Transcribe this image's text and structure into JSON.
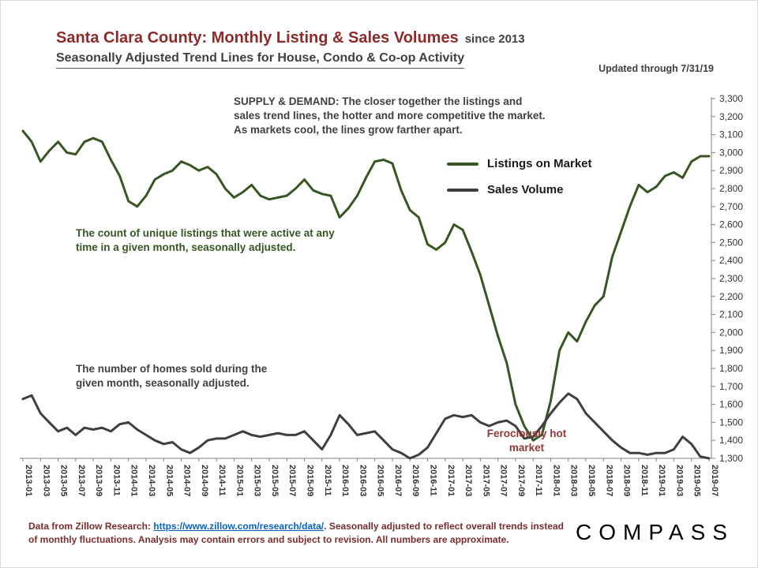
{
  "header": {
    "title": "Santa Clara County: Monthly Listing & Sales Volumes",
    "title_suffix": "since 2013",
    "subtitle": "Seasonally Adjusted Trend Lines for House, Condo & Co-op Activity",
    "updated": "Updated through 7/31/19"
  },
  "legend": {
    "listings_label": "Listings on Market",
    "sales_label": "Sales Volume"
  },
  "annotations": {
    "supply_demand": "SUPPLY & DEMAND: The closer together the listings and sales trend lines, the hotter and more competitive the market. As markets cool, the lines grow farther apart.",
    "listings_note": "The count of unique listings that were active at any time in a given month, seasonally adjusted.",
    "sales_note": "The number of homes sold during the given month, seasonally adjusted.",
    "hot_market": "Ferociously hot market"
  },
  "footer": {
    "text_prefix": "Data from Zillow Research: ",
    "link": "https://www.zillow.com/research/data/",
    "text_suffix": ". Seasonally adjusted to reflect overall trends instead of monthly fluctuations. Analysis may contain errors and subject to revision. All numbers are approximate.",
    "logo": "COMPASS"
  },
  "colors": {
    "listings": "#375623",
    "sales": "#3f3f3f",
    "axis": "#808080",
    "axis_label": "#333333",
    "title": "#8f2a2a",
    "hot_market": "#953735",
    "link": "#0563c1"
  },
  "chart_data": {
    "type": "line",
    "title": "Santa Clara County: Monthly Listing & Sales Volumes since 2013",
    "subtitle": "Seasonally Adjusted Trend Lines for House, Condo & Co-op Activity",
    "xlabel": "",
    "ylabel": "",
    "ylim": [
      1300,
      3300
    ],
    "ytick_step": 100,
    "xtick_every": 2,
    "grid": false,
    "y_axis_side": "right",
    "legend_position": "inside-top-right",
    "x": [
      "2013-01",
      "2013-02",
      "2013-03",
      "2013-04",
      "2013-05",
      "2013-06",
      "2013-07",
      "2013-08",
      "2013-09",
      "2013-10",
      "2013-11",
      "2013-12",
      "2014-01",
      "2014-02",
      "2014-03",
      "2014-04",
      "2014-05",
      "2014-06",
      "2014-07",
      "2014-08",
      "2014-09",
      "2014-10",
      "2014-11",
      "2014-12",
      "2015-01",
      "2015-02",
      "2015-03",
      "2015-04",
      "2015-05",
      "2015-06",
      "2015-07",
      "2015-08",
      "2015-09",
      "2015-10",
      "2015-11",
      "2015-12",
      "2016-01",
      "2016-02",
      "2016-03",
      "2016-04",
      "2016-05",
      "2016-06",
      "2016-07",
      "2016-08",
      "2016-09",
      "2016-10",
      "2016-11",
      "2016-12",
      "2017-01",
      "2017-02",
      "2017-03",
      "2017-04",
      "2017-05",
      "2017-06",
      "2017-07",
      "2017-08",
      "2017-09",
      "2017-10",
      "2017-11",
      "2017-12",
      "2018-01",
      "2018-02",
      "2018-03",
      "2018-04",
      "2018-05",
      "2018-06",
      "2018-07",
      "2018-08",
      "2018-09",
      "2018-10",
      "2018-11",
      "2018-12",
      "2019-01",
      "2019-02",
      "2019-03",
      "2019-04",
      "2019-05",
      "2019-06",
      "2019-07"
    ],
    "series": [
      {
        "name": "Listings on Market",
        "color_key": "listings",
        "values": [
          3120,
          3060,
          2950,
          3010,
          3060,
          3000,
          2990,
          3060,
          3080,
          3060,
          2960,
          2870,
          2730,
          2700,
          2760,
          2850,
          2880,
          2900,
          2950,
          2930,
          2900,
          2920,
          2880,
          2800,
          2750,
          2780,
          2820,
          2760,
          2740,
          2750,
          2760,
          2800,
          2850,
          2790,
          2770,
          2760,
          2640,
          2690,
          2760,
          2860,
          2950,
          2960,
          2940,
          2790,
          2680,
          2640,
          2490,
          2460,
          2500,
          2600,
          2570,
          2450,
          2320,
          2150,
          1980,
          1830,
          1600,
          1480,
          1400,
          1430,
          1620,
          1900,
          2000,
          1950,
          2060,
          2150,
          2200,
          2420,
          2560,
          2700,
          2820,
          2780,
          2810,
          2870,
          2890,
          2860,
          2950,
          2980,
          2980
        ]
      },
      {
        "name": "Sales Volume",
        "color_key": "sales",
        "values": [
          1630,
          1650,
          1550,
          1500,
          1450,
          1470,
          1430,
          1470,
          1460,
          1470,
          1450,
          1490,
          1500,
          1460,
          1430,
          1400,
          1380,
          1390,
          1350,
          1330,
          1360,
          1400,
          1410,
          1410,
          1430,
          1450,
          1430,
          1420,
          1430,
          1440,
          1430,
          1430,
          1450,
          1400,
          1350,
          1430,
          1540,
          1490,
          1430,
          1440,
          1450,
          1400,
          1350,
          1330,
          1300,
          1320,
          1360,
          1440,
          1520,
          1540,
          1530,
          1540,
          1500,
          1480,
          1500,
          1510,
          1480,
          1410,
          1420,
          1480,
          1550,
          1610,
          1660,
          1630,
          1550,
          1500,
          1450,
          1400,
          1360,
          1330,
          1330,
          1320,
          1330,
          1330,
          1350,
          1420,
          1380,
          1310,
          1300
        ]
      }
    ]
  }
}
